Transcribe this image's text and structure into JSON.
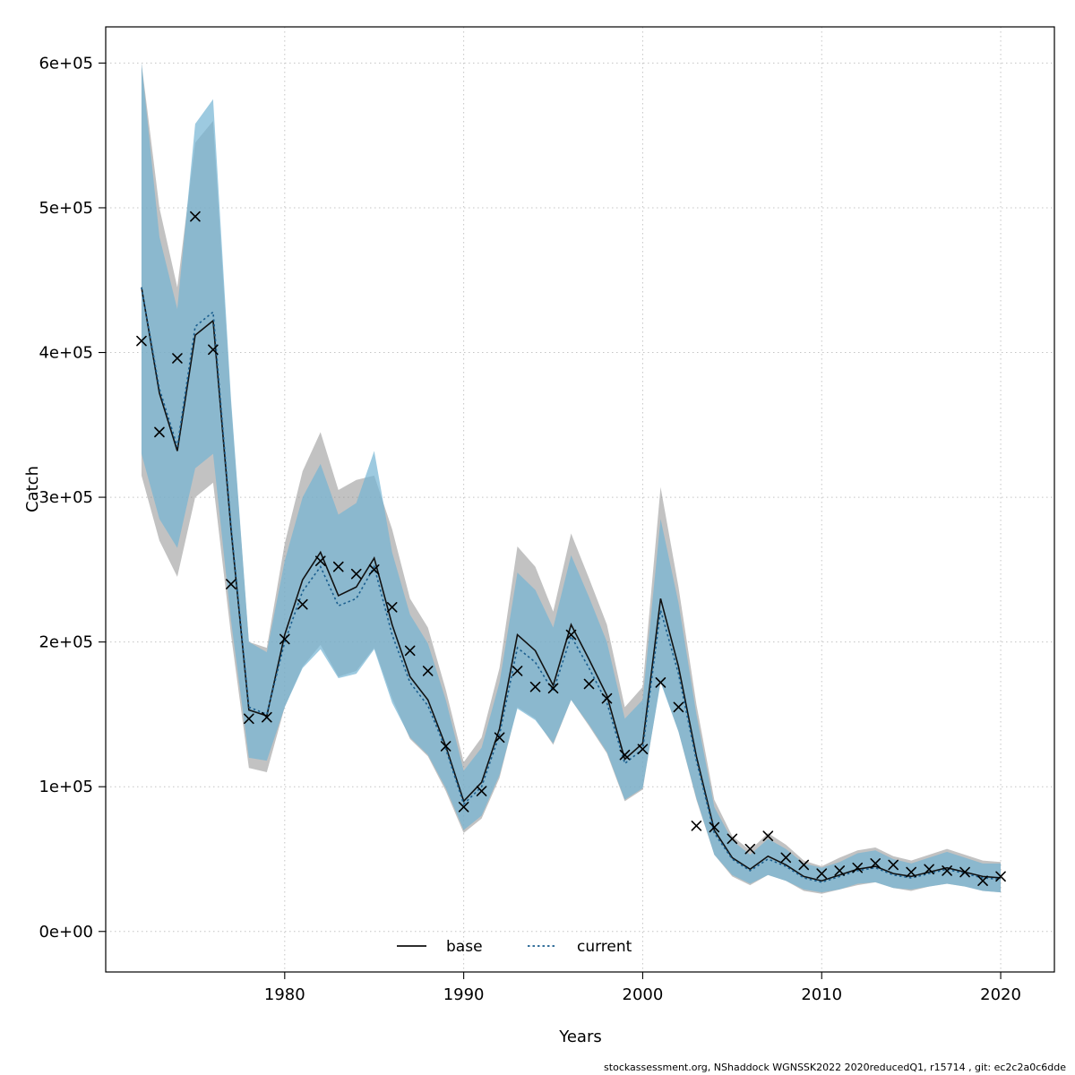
{
  "chart_data": {
    "type": "line",
    "title": "",
    "xlabel": "Years",
    "ylabel": "Catch",
    "footer": "stockassessment.org, NShaddock  WGNSSK2022  2020reducedQ1, r15714 , git: ec2c2a0c6dde",
    "grid": true,
    "legend_position": "bottom-center-inside",
    "xlim": [
      1970,
      2023
    ],
    "ylim": [
      -28000,
      625000
    ],
    "x_ticks": [
      1980,
      1990,
      2000,
      2010,
      2020
    ],
    "y_ticks": [
      {
        "value": 0,
        "label": "0e+00"
      },
      {
        "value": 100000,
        "label": "1e+05"
      },
      {
        "value": 200000,
        "label": "2e+05"
      },
      {
        "value": 300000,
        "label": "3e+05"
      },
      {
        "value": 400000,
        "label": "4e+05"
      },
      {
        "value": 500000,
        "label": "5e+05"
      },
      {
        "value": 600000,
        "label": "6e+05"
      }
    ],
    "years": [
      1972,
      1973,
      1974,
      1975,
      1976,
      1977,
      1978,
      1979,
      1980,
      1981,
      1982,
      1983,
      1984,
      1985,
      1986,
      1987,
      1988,
      1989,
      1990,
      1991,
      1992,
      1993,
      1994,
      1995,
      1996,
      1997,
      1998,
      1999,
      2000,
      2001,
      2002,
      2003,
      2004,
      2005,
      2006,
      2007,
      2008,
      2009,
      2010,
      2011,
      2012,
      2013,
      2014,
      2015,
      2016,
      2017,
      2018,
      2019,
      2020
    ],
    "series": [
      {
        "name": "base",
        "color": "#111111",
        "dashed": false,
        "band_color": "#8f8f8f",
        "band_opacity": 0.55,
        "values": [
          445000,
          372000,
          332000,
          412000,
          422000,
          278000,
          153000,
          149000,
          205000,
          243000,
          262000,
          232000,
          238000,
          258000,
          212000,
          176000,
          160000,
          128000,
          90000,
          103000,
          140000,
          205000,
          194000,
          170000,
          212000,
          188000,
          163000,
          119000,
          130000,
          230000,
          183000,
          121000,
          70000,
          51000,
          43000,
          52000,
          46000,
          38000,
          35000,
          39000,
          43000,
          45000,
          40000,
          38000,
          41000,
          44000,
          41000,
          38000,
          37000
        ],
        "lower": [
          315000,
          270000,
          245000,
          300000,
          310000,
          205000,
          113000,
          110000,
          155000,
          183000,
          198000,
          176000,
          180000,
          196000,
          161000,
          133000,
          121000,
          97000,
          68000,
          78000,
          106000,
          155000,
          147000,
          129000,
          160000,
          142000,
          123000,
          90000,
          98000,
          173000,
          138000,
          91000,
          53000,
          38000,
          32000,
          39000,
          35000,
          28000,
          26000,
          29000,
          32000,
          34000,
          30000,
          28000,
          31000,
          33000,
          31000,
          28000,
          27000
        ],
        "upper": [
          600000,
          500000,
          445000,
          545000,
          560000,
          365000,
          200000,
          196000,
          268000,
          318000,
          345000,
          305000,
          312000,
          315000,
          278000,
          230000,
          210000,
          167000,
          117000,
          134000,
          182000,
          266000,
          252000,
          221000,
          275000,
          244000,
          212000,
          155000,
          169000,
          307000,
          238000,
          157000,
          91000,
          66000,
          56000,
          68000,
          60000,
          49000,
          45000,
          51000,
          56000,
          58000,
          52000,
          49000,
          53000,
          57000,
          53000,
          49000,
          48000
        ]
      },
      {
        "name": "current",
        "color": "#1b5e8e",
        "dashed": true,
        "band_color": "#74b3d3",
        "band_opacity": 0.7,
        "values": [
          445000,
          375000,
          335000,
          418000,
          428000,
          280000,
          155000,
          150000,
          200000,
          235000,
          252000,
          225000,
          230000,
          252000,
          205000,
          172000,
          156000,
          126000,
          88000,
          100000,
          136000,
          196000,
          186000,
          166000,
          204000,
          182000,
          158000,
          116000,
          126000,
          222000,
          178000,
          118000,
          68000,
          50000,
          42000,
          50000,
          45000,
          37000,
          34000,
          38000,
          42000,
          44000,
          39000,
          37000,
          40000,
          43000,
          40000,
          37000,
          36000
        ],
        "lower": [
          330000,
          285000,
          265000,
          320000,
          330000,
          215000,
          120000,
          118000,
          155000,
          182000,
          195000,
          175000,
          178000,
          195000,
          158000,
          134000,
          122000,
          99000,
          70000,
          80000,
          108000,
          154000,
          146000,
          130000,
          160000,
          143000,
          124000,
          91000,
          99000,
          172000,
          138000,
          92000,
          53000,
          39000,
          33000,
          39000,
          35000,
          29000,
          27000,
          29000,
          33000,
          34000,
          30000,
          29000,
          31000,
          33000,
          31000,
          28000,
          27000
        ],
        "upper": [
          600000,
          480000,
          430000,
          558000,
          575000,
          368000,
          200000,
          193000,
          256000,
          300000,
          323000,
          288000,
          296000,
          332000,
          262000,
          219000,
          199000,
          160000,
          111000,
          127000,
          172000,
          248000,
          236000,
          210000,
          260000,
          231000,
          200000,
          147000,
          160000,
          285000,
          227000,
          150000,
          86000,
          63000,
          53000,
          64000,
          57000,
          47000,
          44000,
          48000,
          54000,
          56000,
          50000,
          47000,
          51000,
          55000,
          51000,
          47000,
          47000
        ]
      }
    ],
    "observations": {
      "name": "observed-catch",
      "marker": "x",
      "color": "#000000",
      "values": [
        408000,
        345000,
        396000,
        494000,
        402000,
        240000,
        147000,
        148000,
        202000,
        226000,
        256000,
        252000,
        247000,
        250000,
        224000,
        194000,
        180000,
        128000,
        86000,
        97000,
        134000,
        180000,
        169000,
        168000,
        205000,
        171000,
        161000,
        122000,
        126000,
        172000,
        155000,
        73000,
        72000,
        64000,
        57000,
        66000,
        51000,
        46000,
        40000,
        42000,
        44000,
        47000,
        46000,
        41000,
        43000,
        42000,
        41000,
        35000,
        38000
      ]
    },
    "legend": [
      {
        "label": "base"
      },
      {
        "label": "current"
      }
    ]
  }
}
